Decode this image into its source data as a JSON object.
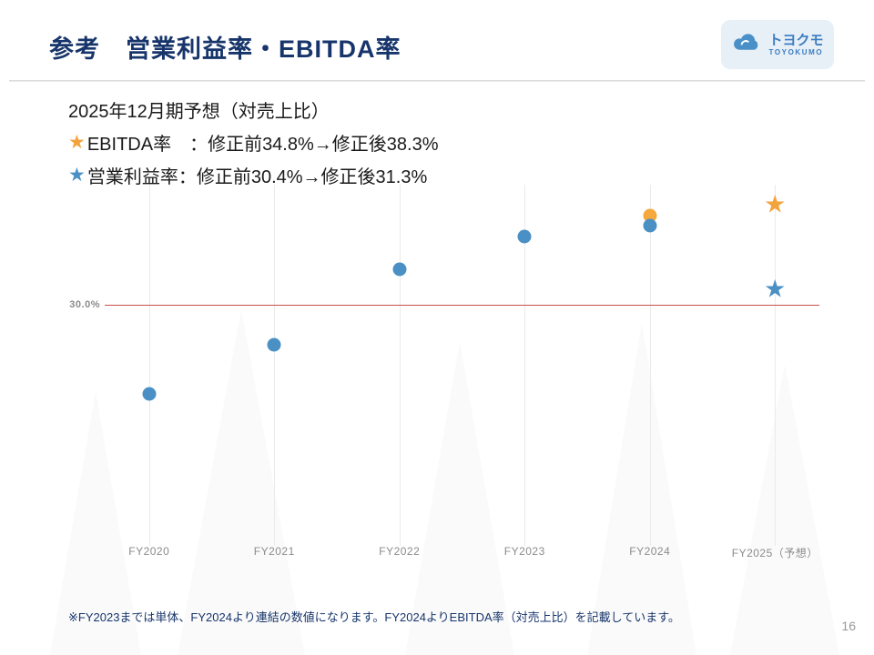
{
  "slide": {
    "title": "参考　営業利益率・EBITDA率",
    "footnote": "※FY2023までは単体、FY2024より連結の数値になります。FY2024よりEBITDA率（対売上比）を記載しています。",
    "page_number": "16"
  },
  "logo": {
    "name": "トヨクモ",
    "subtext": "TOYOKUMO"
  },
  "annotation": {
    "heading": "2025年12月期予想（対売上比）",
    "star_glyph": "★",
    "ebitda_line": "EBITDA率　：修正前34.8%→修正後38.3%",
    "operating_line": "営業利益率：修正前30.4%→修正後31.3%"
  },
  "colors": {
    "title_navy": "#17356b",
    "dot_blue": "#4a90c4",
    "star_orange": "#f2a33c",
    "reference_red": "#c9504c"
  },
  "chart_data": {
    "type": "scatter",
    "categories": [
      "FY2020",
      "FY2021",
      "FY2022",
      "FY2023",
      "FY2024",
      "FY2025（予想）"
    ],
    "series": [
      {
        "name": "EBITDA率",
        "marker": "circle",
        "color": "#f5a83c",
        "values": [
          null,
          null,
          null,
          null,
          37.4,
          null
        ]
      },
      {
        "name": "営業利益率",
        "marker": "circle",
        "color": "#4a90c4",
        "values": [
          22.6,
          26.7,
          33.0,
          35.7,
          36.6,
          null
        ]
      },
      {
        "name": "EBITDA率（予想）",
        "marker": "star",
        "color": "#f2a33c",
        "values": [
          null,
          null,
          null,
          null,
          null,
          38.3
        ]
      },
      {
        "name": "営業利益率（予想）",
        "marker": "star",
        "color": "#4a90c4",
        "values": [
          null,
          null,
          null,
          null,
          null,
          31.3
        ]
      }
    ],
    "reference_line": {
      "value": 30.0,
      "label": "30.0%"
    },
    "ylim": [
      10,
      40
    ],
    "legend": "none",
    "grid": "vertical-only"
  }
}
